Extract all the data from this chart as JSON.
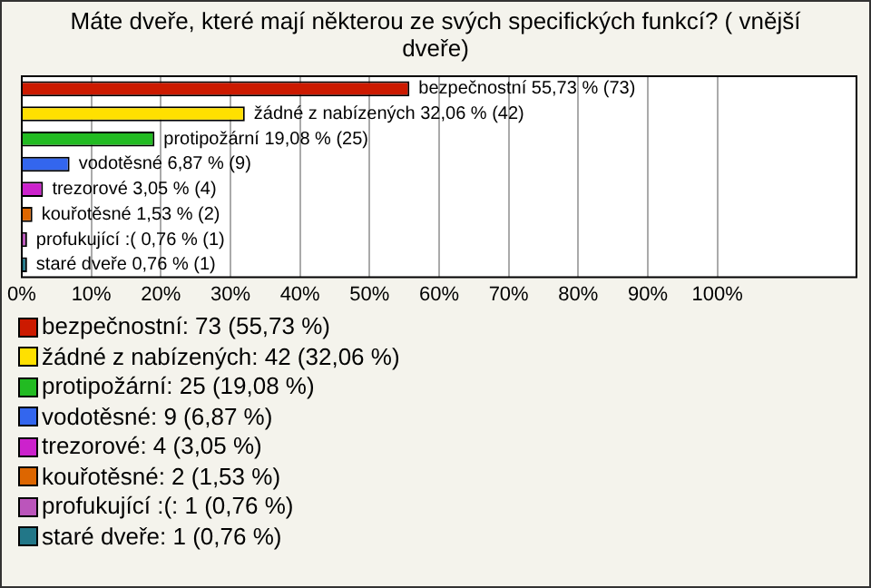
{
  "chart_data": {
    "type": "bar",
    "orientation": "horizontal",
    "title": "Máte dveře, které mají některou ze svých specifických funkcí? ( vnější dveře)",
    "categories": [
      null,
      null,
      null,
      null,
      null,
      null,
      null,
      null
    ],
    "values": [
      55.73,
      32.06,
      19.08,
      6.87,
      3.05,
      1.53,
      0.76,
      0.76
    ],
    "colors": [
      "#cc1a00",
      "#ffe000",
      "#22bb22",
      "#3366ee",
      "#cc22cc",
      "#dd6600",
      "#bb55bb",
      "#227788"
    ],
    "value_labels": [
      "bezpečnostní 55,73 % (73)",
      "žádné z nabízených 32,06 % (42)",
      "protipožární 19,08 % (25)",
      "vodotěsné 6,87 % (9)",
      "trezorové 3,05 % (4)",
      "kouřotěsné 1,53 % (2)",
      "profukující :( 0,76 % (1)",
      "staré dveře 0,76 % (1)"
    ],
    "annotations": [
      "bezpečnostní: 73 (55,73 %)",
      "žádné z nabízených: 42 (32,06 %)",
      "protipožární: 25 (19,08 %)",
      "vodotěsné: 9 (6,87 %)",
      "trezorové: 4 (3,05 %)",
      "kouřotěsné: 2 (1,53 %)",
      "profukující :(: 1 (0,76 %)",
      "staré dveře: 1 (0,76 %)"
    ],
    "xlim": [
      0,
      120
    ],
    "xticks": [
      {
        "value": 0,
        "label": "0%"
      },
      {
        "value": 10,
        "label": "10%"
      },
      {
        "value": 20,
        "label": "20%"
      },
      {
        "value": 30,
        "label": "30%"
      },
      {
        "value": 40,
        "label": "40%"
      },
      {
        "value": 50,
        "label": "50%"
      },
      {
        "value": 60,
        "label": "60%"
      },
      {
        "value": 70,
        "label": "70%"
      },
      {
        "value": 80,
        "label": "80%"
      },
      {
        "value": 90,
        "label": "90%"
      },
      {
        "value": 100,
        "label": "100%"
      }
    ],
    "grid": "x",
    "tick_labels": "x"
  }
}
